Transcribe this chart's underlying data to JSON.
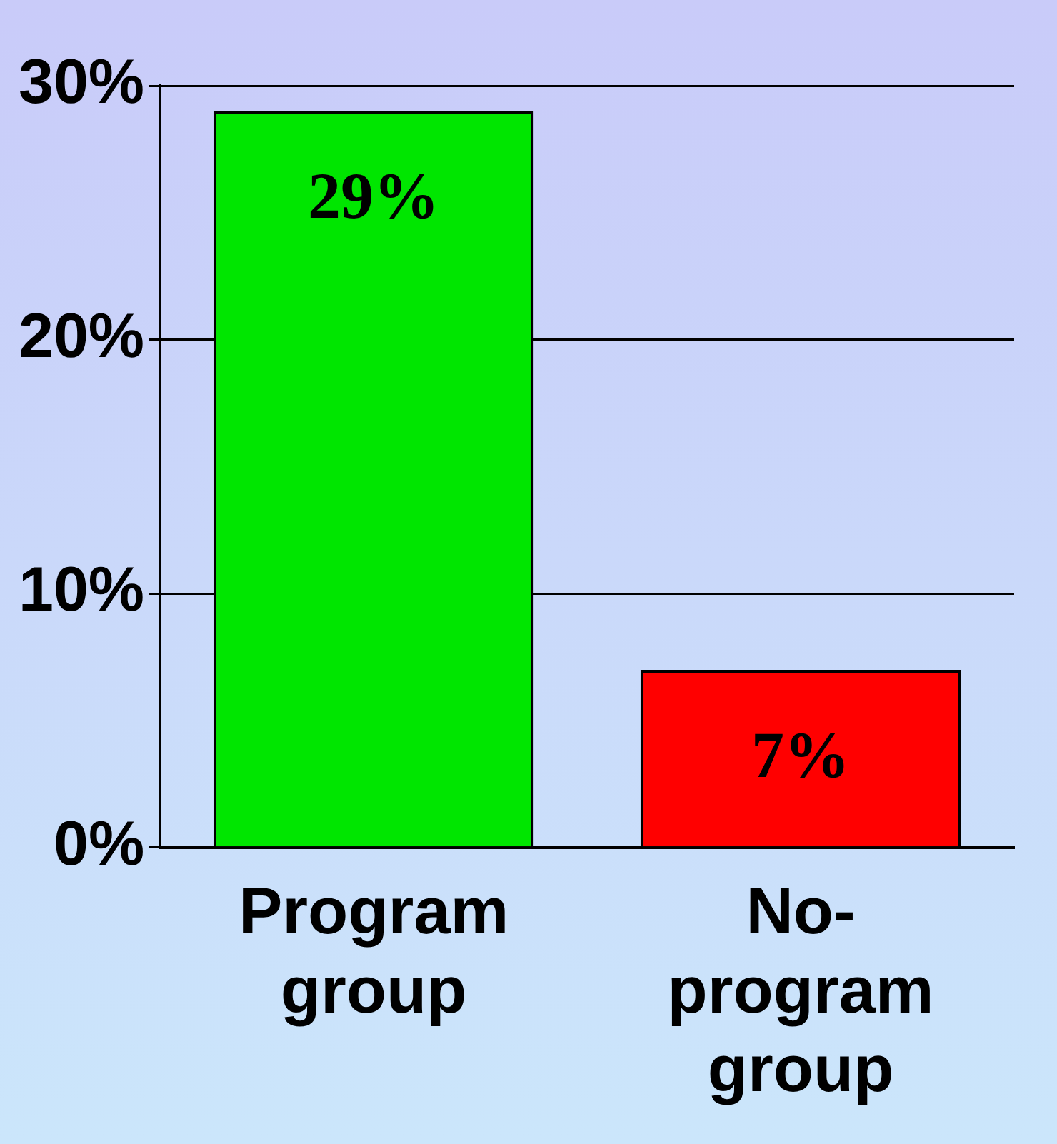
{
  "chart_data": {
    "type": "bar",
    "categories": [
      "Program group",
      "No-program group"
    ],
    "values": [
      29,
      7
    ],
    "colors": [
      "#00e600",
      "#ff0000"
    ],
    "value_labels": [
      "29%",
      "7%"
    ],
    "ylim": [
      0,
      30
    ],
    "yticks": [
      {
        "value": 0,
        "label": "0%"
      },
      {
        "value": 10,
        "label": "10%"
      },
      {
        "value": 20,
        "label": "20%"
      },
      {
        "value": 30,
        "label": "30%"
      }
    ],
    "grid": "y",
    "legend": false
  }
}
